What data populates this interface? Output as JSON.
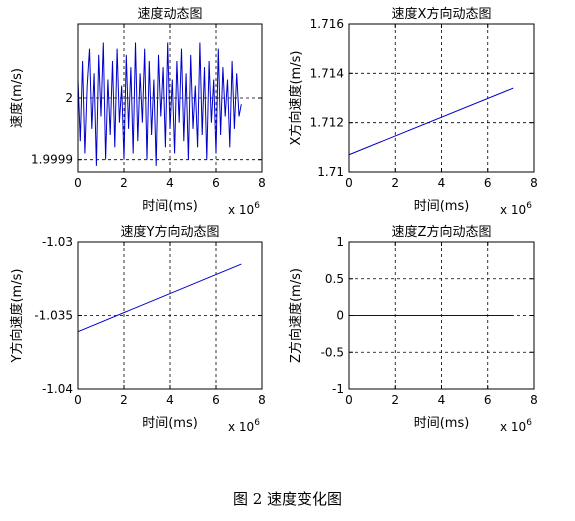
{
  "caption": "图 2  速度变化图",
  "chart_data": [
    {
      "type": "line",
      "title": "速度动态图",
      "xlabel": "时间(ms)",
      "ylabel": "速度(m/s)",
      "x_multiplier_label": "x 10",
      "x_multiplier_exp": "6",
      "xlim": [
        0,
        8
      ],
      "ylim": [
        1.99988,
        2.00012
      ],
      "xticks": [
        0,
        2,
        4,
        6,
        8
      ],
      "xtick_labels": [
        "0",
        "2",
        "4",
        "6",
        "8"
      ],
      "yticks": [
        1.9999,
        2.0
      ],
      "ytick_labels": [
        "1.9999",
        "2"
      ],
      "grid": true,
      "color": "#0000cc",
      "series": [
        {
          "x": [
            0,
            0.1,
            0.2,
            0.3,
            0.4,
            0.5,
            0.6,
            0.7,
            0.8,
            0.9,
            1.0,
            1.1,
            1.2,
            1.3,
            1.4,
            1.5,
            1.6,
            1.7,
            1.8,
            1.9,
            2.0,
            2.1,
            2.2,
            2.3,
            2.4,
            2.5,
            2.6,
            2.7,
            2.8,
            2.9,
            3.0,
            3.1,
            3.2,
            3.3,
            3.4,
            3.5,
            3.6,
            3.7,
            3.8,
            3.9,
            4.0,
            4.1,
            4.2,
            4.3,
            4.4,
            4.5,
            4.6,
            4.7,
            4.8,
            4.9,
            5.0,
            5.1,
            5.2,
            5.3,
            5.4,
            5.5,
            5.6,
            5.7,
            5.8,
            5.9,
            6.0,
            6.1,
            6.2,
            6.3,
            6.4,
            6.5,
            6.6,
            6.7,
            6.8,
            6.9,
            7.0,
            7.1
          ],
          "values": [
            2.00003,
            1.99993,
            2.00006,
            1.99991,
            2.00002,
            2.00008,
            1.99995,
            2.00004,
            1.99989,
            2.00007,
            1.99997,
            2.00009,
            1.9999,
            2.00003,
            1.99994,
            2.00006,
            1.99992,
            2.00008,
            1.99996,
            2.00002,
            1.9999,
            2.00007,
            1.99995,
            2.00005,
            1.99991,
            2.00009,
            1.99993,
            2.00004,
            1.99996,
            2.00008,
            1.9999,
            2.00006,
            1.99994,
            2.00003,
            1.99989,
            2.00007,
            1.99997,
            2.00005,
            1.99992,
            2.00009,
            1.99995,
            2.00003,
            1.99991,
            2.00006,
            1.99996,
            2.00008,
            1.99993,
            2.00004,
            1.9999,
            2.00007,
            1.99995,
            2.00002,
            1.99992,
            2.00009,
            1.99994,
            2.00005,
            1.9999,
            2.00006,
            1.99996,
            2.00003,
            1.99991,
            2.00008,
            1.99994,
            2.00005,
            1.99997,
            2.00003,
            1.99992,
            2.00006,
            1.99995,
            2.00004,
            1.99997,
            1.99999
          ]
        }
      ]
    },
    {
      "type": "line",
      "title": "速度X方向动态图",
      "xlabel": "时间(ms)",
      "ylabel": "X方向速度(m/s)",
      "x_multiplier_label": "x 10",
      "x_multiplier_exp": "6",
      "xlim": [
        0,
        8
      ],
      "ylim": [
        1.71,
        1.716
      ],
      "xticks": [
        0,
        2,
        4,
        6,
        8
      ],
      "xtick_labels": [
        "0",
        "2",
        "4",
        "6",
        "8"
      ],
      "yticks": [
        1.71,
        1.712,
        1.714,
        1.716
      ],
      "ytick_labels": [
        "1.71",
        "1.712",
        "1.714",
        "1.716"
      ],
      "grid": true,
      "color": "#0000cc",
      "series": [
        {
          "x": [
            0,
            7.1
          ],
          "values": [
            1.7107,
            1.7134
          ]
        }
      ]
    },
    {
      "type": "line",
      "title": "速度Y方向动态图",
      "xlabel": "时间(ms)",
      "ylabel": "Y方向速度(m/s)",
      "x_multiplier_label": "x 10",
      "x_multiplier_exp": "6",
      "xlim": [
        0,
        8
      ],
      "ylim": [
        -1.04,
        -1.03
      ],
      "xticks": [
        0,
        2,
        4,
        6,
        8
      ],
      "xtick_labels": [
        "0",
        "2",
        "4",
        "6",
        "8"
      ],
      "yticks": [
        -1.04,
        -1.035,
        -1.03
      ],
      "ytick_labels": [
        "-1.04",
        "-1.035",
        "-1.03"
      ],
      "grid": true,
      "color": "#0000cc",
      "series": [
        {
          "x": [
            0,
            7.1
          ],
          "values": [
            -1.0361,
            -1.0315
          ]
        }
      ]
    },
    {
      "type": "line",
      "title": "速度Z方向动态图",
      "xlabel": "时间(ms)",
      "ylabel": "Z方向速度(m/s)",
      "x_multiplier_label": "x 10",
      "x_multiplier_exp": "6",
      "xlim": [
        0,
        8
      ],
      "ylim": [
        -1,
        1
      ],
      "xticks": [
        0,
        2,
        4,
        6,
        8
      ],
      "xtick_labels": [
        "0",
        "2",
        "4",
        "6",
        "8"
      ],
      "yticks": [
        -1,
        -0.5,
        0,
        0.5,
        1
      ],
      "ytick_labels": [
        "-1",
        "-0.5",
        "0",
        "0.5",
        "1"
      ],
      "grid": true,
      "color": "#0000cc",
      "series": [
        {
          "x": [
            0,
            7.1
          ],
          "values": [
            0,
            0
          ]
        }
      ]
    }
  ]
}
